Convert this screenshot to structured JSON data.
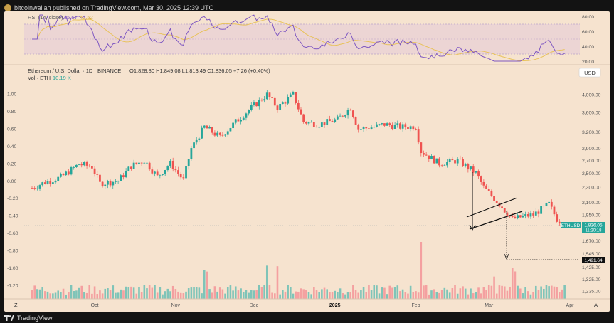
{
  "publisher": "bitcoinwallah published on TradingView.com, Mar 30, 2025 12:39 UTC",
  "footer_brand": "TradingView",
  "rsi": {
    "label": "RSI (14, close)",
    "value": "35.57",
    "ma_value": "40.52",
    "ticks": [
      "80.00",
      "60.00",
      "40.00",
      "20.00"
    ],
    "colors": {
      "rsi": "#7e57c2",
      "ma": "#e8c25a",
      "band": "#e3cbd8"
    }
  },
  "legend": {
    "symbol": "Ethereum / U.S. Dollar · 1D · BINANCE",
    "ohlc": "O1,828.80  H1,849.08  L1,813.49  C1,836.05  +7.26 (+0.40%)",
    "vol_label": "Vol · ETH",
    "vol_value": "10.19 K"
  },
  "currency": "USD",
  "price_ticks": [
    "4,000.00",
    "3,600.00",
    "3,200.00",
    "2,900.00",
    "2,700.00",
    "2,500.00",
    "2,300.00",
    "2,100.00",
    "1,950.00",
    "1,800.00",
    "1,670.00",
    "1,545.00",
    "1,425.00",
    "1,325.00",
    "1,235.00"
  ],
  "left_ticks": [
    "1.00",
    "0.80",
    "0.60",
    "0.40",
    "0.20",
    "0.00",
    "-0.20",
    "-0.40",
    "-0.60",
    "-0.80",
    "-1.00",
    "-1.20"
  ],
  "time_labels": [
    "Oct",
    "Nov",
    "Dec",
    "2025",
    "Feb",
    "Mar",
    "Apr"
  ],
  "corner_left": "Z",
  "corner_right": "A",
  "price_tag": {
    "symbol": "ETHUSD",
    "price": "1,836.05",
    "countdown": "11:20:18"
  },
  "target_tag": "1,491.64",
  "colors": {
    "up": "#26a69a",
    "down": "#ef5350",
    "up_vol": "#7fc4b8",
    "down_vol": "#f4a0a0",
    "panel": "#f6e3cf",
    "tag": "#26a69a"
  },
  "chart_data": {
    "type": "candlestick",
    "title": "Ethereum / U.S. Dollar · 1D · BINANCE",
    "ylabel": "USD",
    "y_scale": "log",
    "ylim": [
      1200,
      4300
    ],
    "x_labels": [
      "Oct",
      "Nov",
      "Dec",
      "2025",
      "Feb",
      "Mar",
      "Apr"
    ],
    "close_anchors": [
      {
        "date": "2024-09-07",
        "close": 2290
      },
      {
        "date": "2024-09-12",
        "close": 2370
      },
      {
        "date": "2024-09-18",
        "close": 2440
      },
      {
        "date": "2024-09-25",
        "close": 2640
      },
      {
        "date": "2024-09-30",
        "close": 2600
      },
      {
        "date": "2024-10-03",
        "close": 2350
      },
      {
        "date": "2024-10-10",
        "close": 2390
      },
      {
        "date": "2024-10-15",
        "close": 2610
      },
      {
        "date": "2024-10-20",
        "close": 2700
      },
      {
        "date": "2024-10-25",
        "close": 2450
      },
      {
        "date": "2024-10-30",
        "close": 2650
      },
      {
        "date": "2024-11-04",
        "close": 2400
      },
      {
        "date": "2024-11-07",
        "close": 2900
      },
      {
        "date": "2024-11-12",
        "close": 3300
      },
      {
        "date": "2024-11-18",
        "close": 3100
      },
      {
        "date": "2024-11-24",
        "close": 3400
      },
      {
        "date": "2024-11-30",
        "close": 3700
      },
      {
        "date": "2024-12-06",
        "close": 4000
      },
      {
        "date": "2024-12-10",
        "close": 3700
      },
      {
        "date": "2024-12-16",
        "close": 4000
      },
      {
        "date": "2024-12-20",
        "close": 3400
      },
      {
        "date": "2024-12-26",
        "close": 3350
      },
      {
        "date": "2025-01-02",
        "close": 3450
      },
      {
        "date": "2025-01-07",
        "close": 3700
      },
      {
        "date": "2025-01-10",
        "close": 3250
      },
      {
        "date": "2025-01-16",
        "close": 3300
      },
      {
        "date": "2025-01-20",
        "close": 3350
      },
      {
        "date": "2025-01-26",
        "close": 3300
      },
      {
        "date": "2025-02-01",
        "close": 3300
      },
      {
        "date": "2025-02-03",
        "close": 2850
      },
      {
        "date": "2025-02-10",
        "close": 2650
      },
      {
        "date": "2025-02-17",
        "close": 2700
      },
      {
        "date": "2025-02-24",
        "close": 2500
      },
      {
        "date": "2025-02-27",
        "close": 2300
      },
      {
        "date": "2025-03-03",
        "close": 2150
      },
      {
        "date": "2025-03-10",
        "close": 1900
      },
      {
        "date": "2025-03-14",
        "close": 1930
      },
      {
        "date": "2025-03-18",
        "close": 1950
      },
      {
        "date": "2025-03-24",
        "close": 2080
      },
      {
        "date": "2025-03-27",
        "close": 1900
      },
      {
        "date": "2025-03-30",
        "close": 1836.05
      }
    ],
    "volume_scale_rsi_ticks": [
      20,
      40,
      60,
      80
    ],
    "annotations": {
      "target": 1491.64,
      "last_close": 1836.05
    }
  }
}
